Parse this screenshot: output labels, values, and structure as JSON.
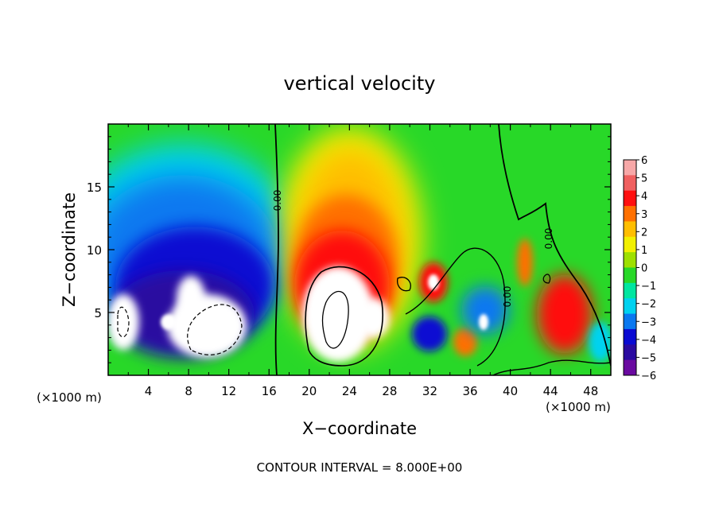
{
  "chart_data": {
    "type": "heatmap",
    "title": "vertical velocity",
    "xlabel": "X−coordinate",
    "ylabel": "Z−coordinate",
    "x_unit_left": "(×1000 m)",
    "x_unit_right": "(×1000 m)",
    "footer": "CONTOUR INTERVAL = 8.000E+00",
    "xlim": [
      0,
      50
    ],
    "ylim": [
      0,
      20
    ],
    "x_ticks": [
      4,
      8,
      12,
      16,
      20,
      24,
      28,
      32,
      36,
      40,
      44,
      48
    ],
    "y_ticks": [
      5,
      10,
      15
    ],
    "colorbar": {
      "ticks": [
        "6",
        "5",
        "4",
        "3",
        "2",
        "1",
        "0",
        "−1",
        "−2",
        "−3",
        "−4",
        "−5",
        "−6"
      ],
      "colors": [
        "#f7a8a8",
        "#f06060",
        "#ff1010",
        "#ff7000",
        "#ffbe00",
        "#f2f000",
        "#9ee000",
        "#28d828",
        "#00e6a0",
        "#00d2f0",
        "#0a78f0",
        "#0a0ad2",
        "#2a0aa0",
        "#6a0aa0"
      ]
    },
    "contour_labels": [
      "0.00",
      "0.00",
      "0.00"
    ],
    "features": [
      {
        "kind": "updraft",
        "x": 24,
        "z": 8,
        "strength": 6
      },
      {
        "kind": "updraft",
        "x": 32,
        "z": 7,
        "strength": 5
      },
      {
        "kind": "updraft",
        "x": 45,
        "z": 5,
        "strength": 4
      },
      {
        "kind": "downdraft",
        "x": 8,
        "z": 7,
        "strength": -6
      },
      {
        "kind": "downdraft",
        "x": 37,
        "z": 5,
        "strength": -4
      }
    ]
  }
}
